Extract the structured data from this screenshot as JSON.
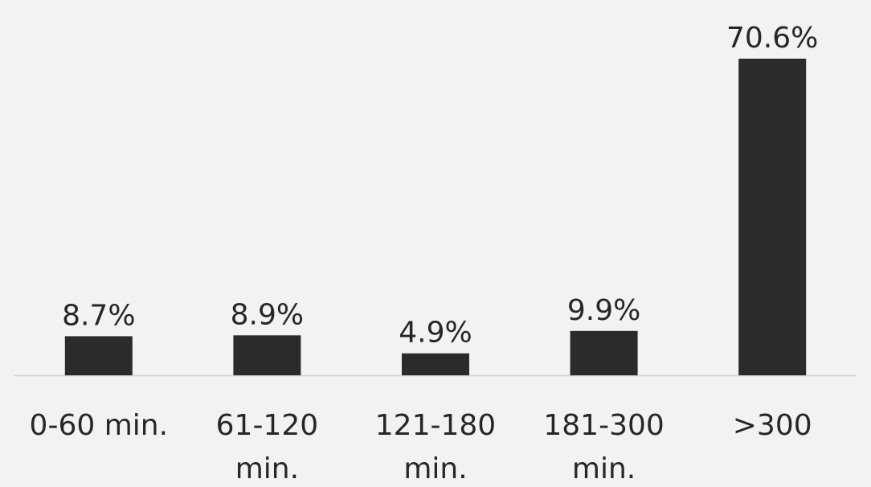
{
  "chart_data": {
    "type": "bar",
    "categories": [
      [
        "0-60 min."
      ],
      [
        "61-120",
        "min."
      ],
      [
        "121-180",
        "min."
      ],
      [
        "181-300",
        "min."
      ],
      [
        ">300"
      ]
    ],
    "values": [
      8.7,
      8.9,
      4.9,
      9.9,
      70.6
    ],
    "data_labels": [
      "8.7%",
      "8.9%",
      "4.9%",
      "9.9%",
      "70.6%"
    ],
    "ylim": [
      0,
      70.6
    ],
    "grid": false,
    "legend": "none",
    "colors": {
      "bar": "#2b2b2b",
      "background": "#f2f2f2",
      "text": "#262626",
      "axis": "#cfcfcf"
    }
  }
}
